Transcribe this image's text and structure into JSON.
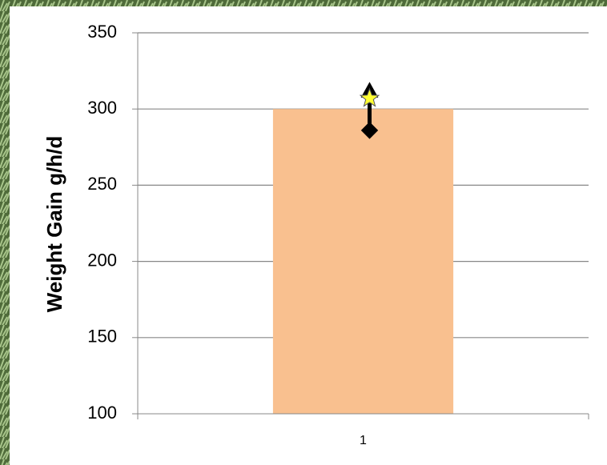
{
  "chart_data": {
    "type": "bar",
    "ylabel": "Weight Gain g/h/d",
    "categories": [
      "1"
    ],
    "series": [
      {
        "color": "#f9c08f",
        "values": [
          300
        ]
      },
      {
        "color": "#000000",
        "marker": "diamond",
        "values": [
          286
        ]
      },
      {
        "color": "#000000",
        "marker": "triangle",
        "values": [
          312
        ]
      },
      {
        "color": "#ffff33",
        "marker": "star",
        "values": [
          307
        ]
      }
    ],
    "ylim": [
      100,
      350
    ],
    "yticks": [
      100,
      150,
      200,
      250,
      300,
      350
    ],
    "grid": true
  }
}
